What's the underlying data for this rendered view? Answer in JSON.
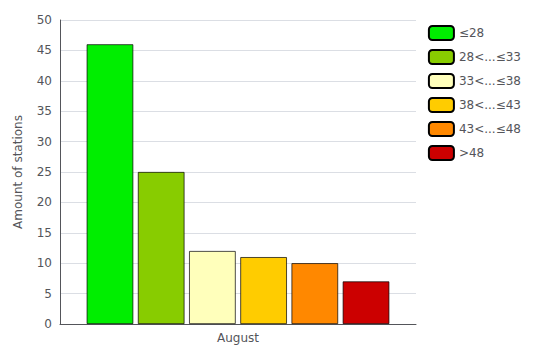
{
  "chart_data": {
    "type": "bar",
    "categories": [
      "August"
    ],
    "series": [
      {
        "name": "≤28",
        "color": "#00ee00",
        "values": [
          46
        ]
      },
      {
        "name": "28<...≤33",
        "color": "#88cc00",
        "values": [
          25
        ]
      },
      {
        "name": "33<...≤38",
        "color": "#ffffbb",
        "values": [
          12
        ]
      },
      {
        "name": "38<...≤43",
        "color": "#ffcc00",
        "values": [
          11
        ]
      },
      {
        "name": "43<...≤48",
        "color": "#ff8800",
        "values": [
          10
        ]
      },
      {
        "name": ">48",
        "color": "#cc0000",
        "values": [
          7
        ]
      }
    ],
    "ylabel": "Amount of stations",
    "ylim": [
      0,
      50
    ],
    "yticks": [
      0,
      5,
      10,
      15,
      20,
      25,
      30,
      35,
      40,
      45,
      50
    ],
    "grid": true,
    "legend": "upper right"
  }
}
